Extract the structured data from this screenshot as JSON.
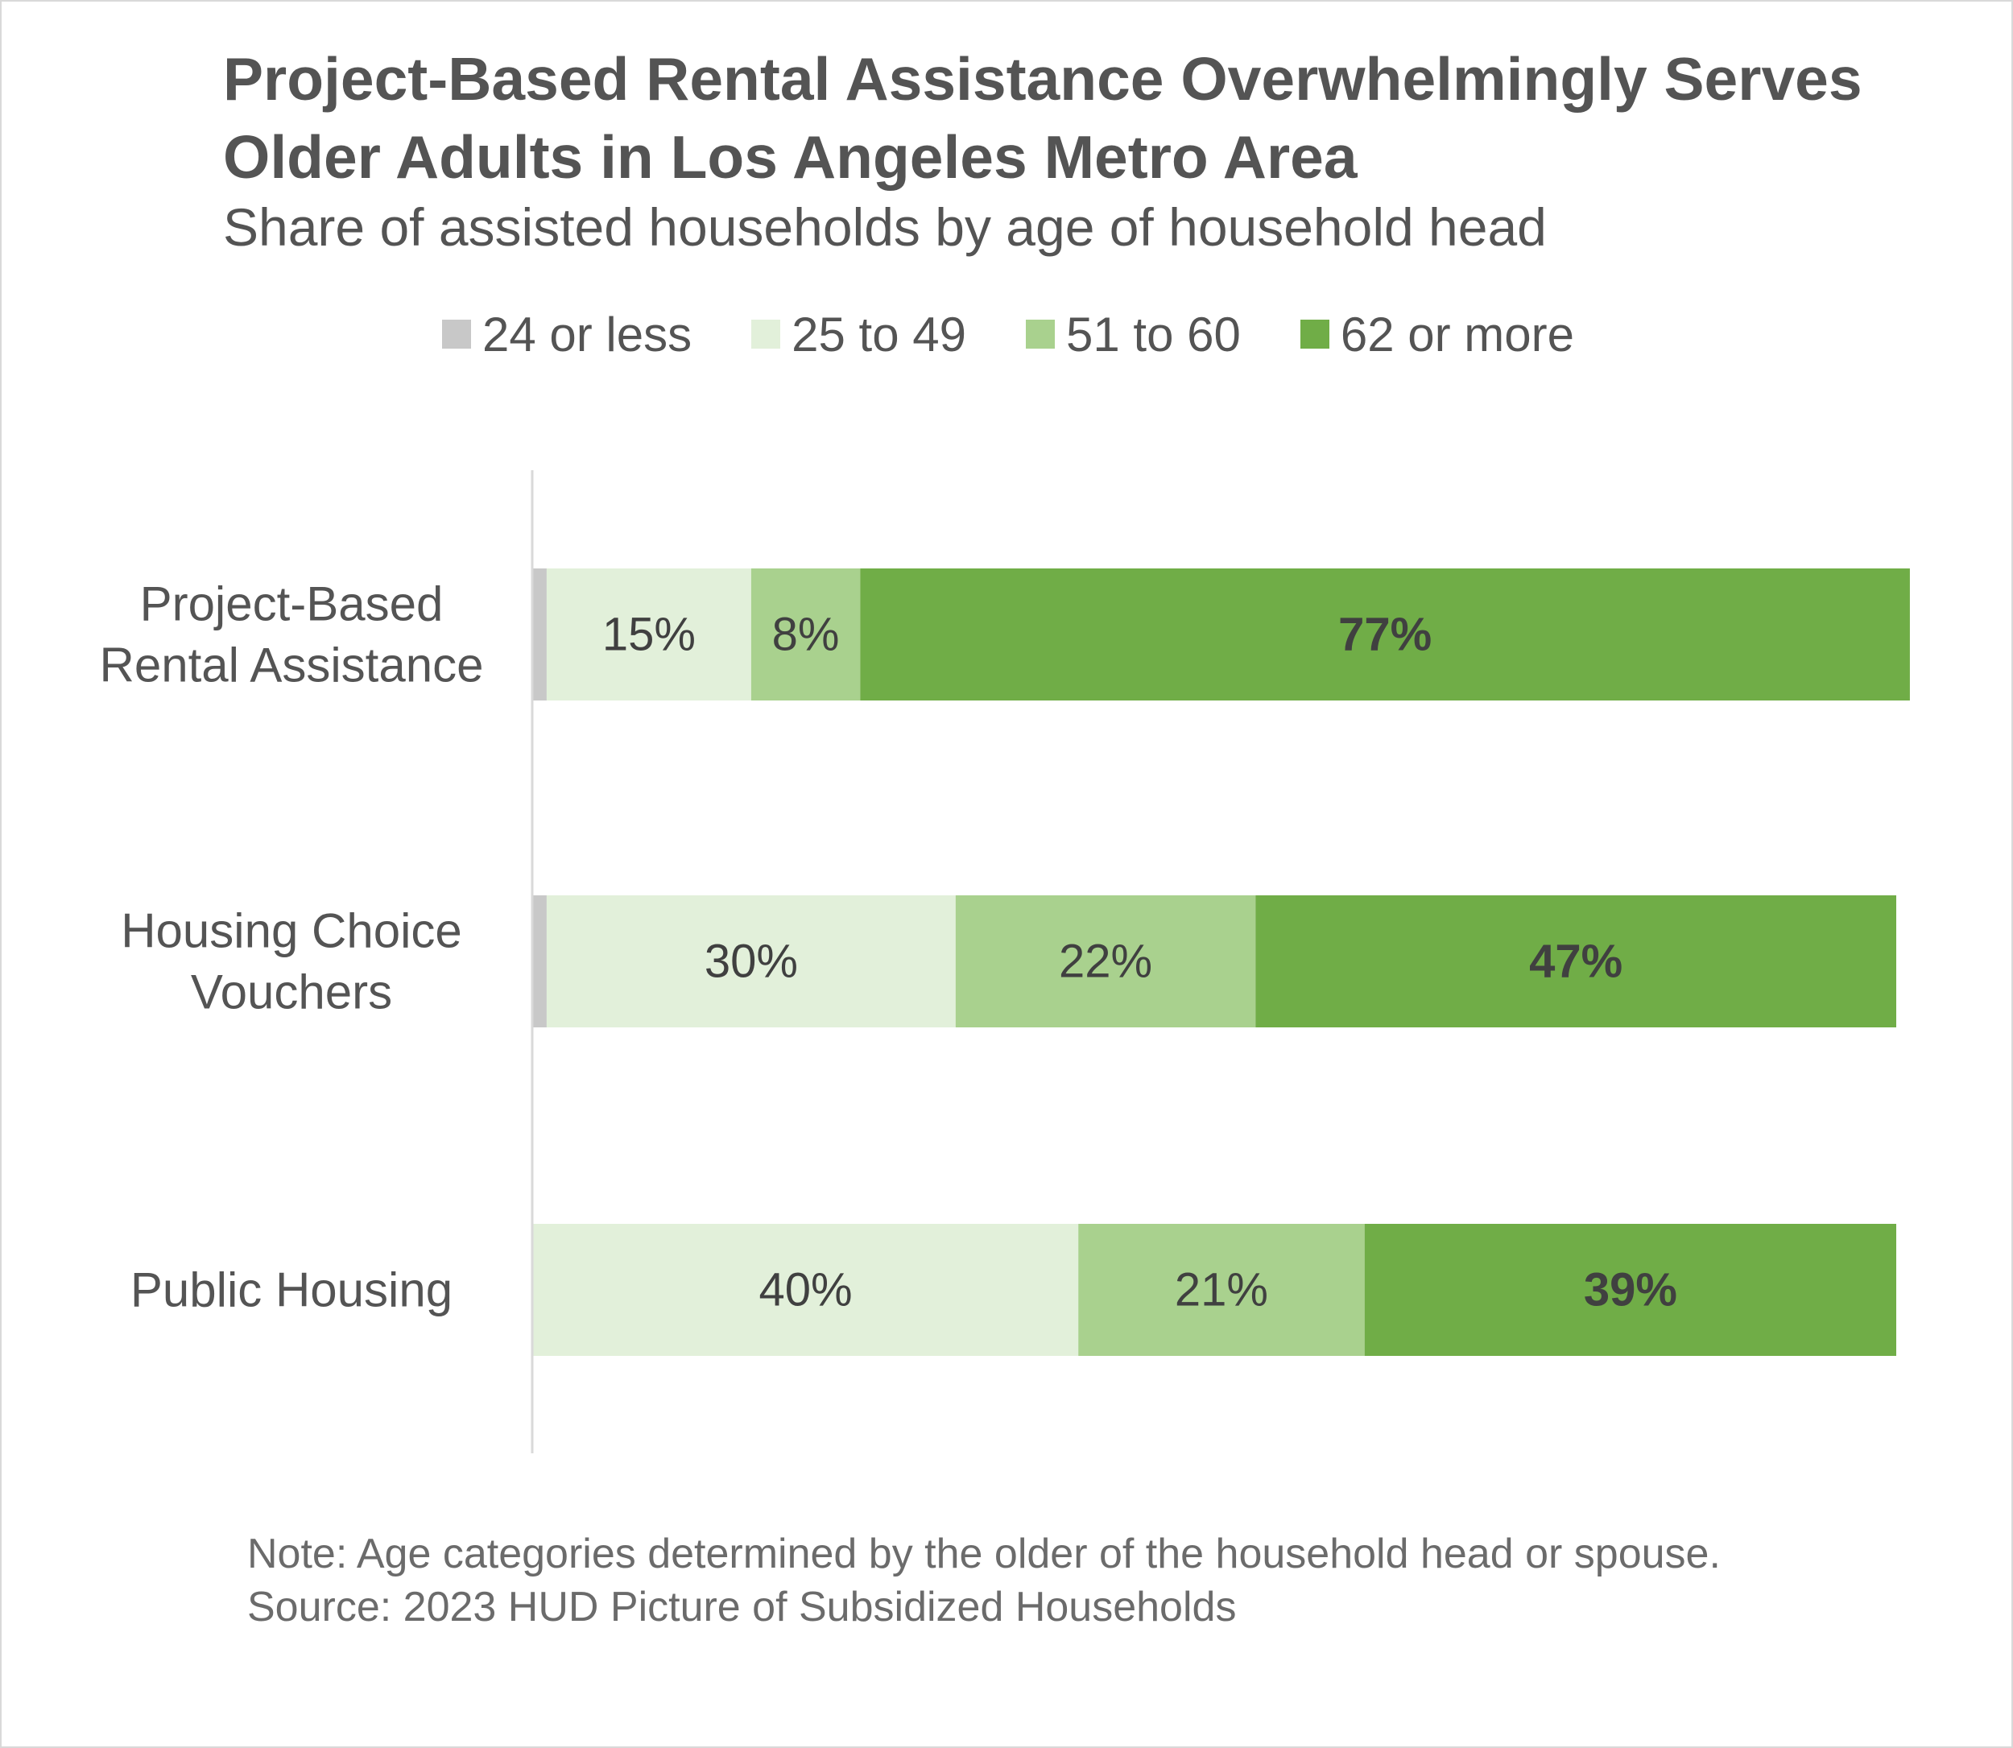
{
  "title": "Project-Based Rental Assistance Overwhelmingly Serves Older Adults in Los Angeles Metro Area",
  "subtitle": "Share of assisted households by age of household head",
  "note": "Note: Age categories determined by the older of the household head or spouse.",
  "source": "Source: 2023 HUD Picture of Subsidized Households",
  "chart_data": {
    "type": "bar",
    "orientation": "horizontal",
    "stacked": true,
    "title": "Project-Based Rental Assistance Overwhelmingly Serves Older Adults in Los Angeles Metro Area",
    "subtitle": "Share of assisted households by age of household head",
    "categories": [
      "Project-Based Rental Assistance",
      "Housing Choice Vouchers",
      "Public Housing"
    ],
    "category_label_lines": [
      [
        "Project-Based",
        "Rental Assistance"
      ],
      [
        "Housing Choice",
        "Vouchers"
      ],
      [
        "Public Housing"
      ]
    ],
    "series": [
      {
        "name": "24 or less",
        "color": "#c8c8c8",
        "values": [
          1,
          1,
          0
        ],
        "labels": [
          "",
          "",
          ""
        ],
        "label_bold": false
      },
      {
        "name": "25 to 49",
        "color": "#e2f0da",
        "values": [
          15,
          30,
          40
        ],
        "labels": [
          "15%",
          "30%",
          "40%"
        ],
        "label_bold": false
      },
      {
        "name": "51 to 60",
        "color": "#a9d18e",
        "values": [
          8,
          22,
          21
        ],
        "labels": [
          "8%",
          "22%",
          "21%"
        ],
        "label_bold": false
      },
      {
        "name": "62 or more",
        "color": "#70ad47",
        "values": [
          77,
          47,
          39
        ],
        "labels": [
          "77%",
          "47%",
          "39%"
        ],
        "label_bold": true
      }
    ],
    "xlim": [
      0,
      100
    ],
    "legend_position": "top",
    "grid": false
  }
}
